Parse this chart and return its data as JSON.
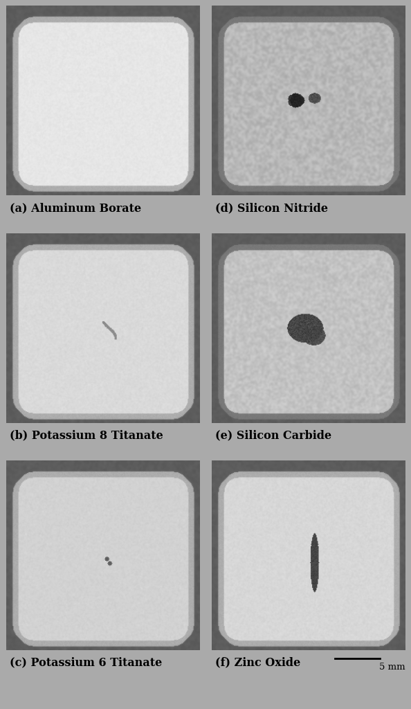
{
  "labels_left": [
    "(a) Aluminum Borate",
    "(b) Potassium 8 Titanate",
    "(c) Potassium 6 Titanate"
  ],
  "labels_right": [
    "(d) Silicon Nitride",
    "(e) Silicon Carbide",
    "(f) Zinc Oxide"
  ],
  "label_fontsize": 11.5,
  "scale_bar_text": "5 mm",
  "fig_bg": "#aaaaaa",
  "panel_order": [
    "a",
    "b",
    "c",
    "d",
    "e",
    "f"
  ]
}
